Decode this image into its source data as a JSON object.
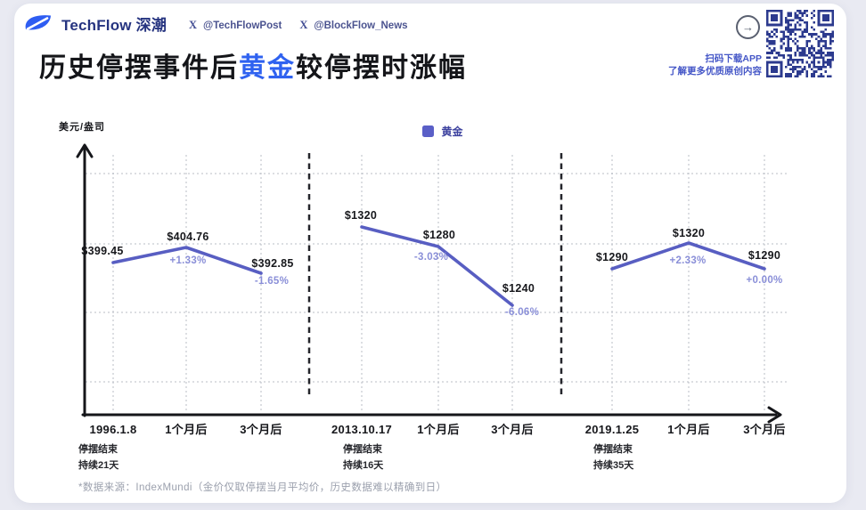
{
  "header": {
    "brand": "TechFlow 深潮",
    "handles": [
      {
        "icon": "X",
        "label": "@TechFlowPost"
      },
      {
        "icon": "X",
        "label": "@BlockFlow_News"
      }
    ],
    "download": {
      "arrow_icon": "→",
      "line1": "扫码下载APP",
      "line2": "了解更多优质原创内容"
    }
  },
  "title": {
    "pre": "历史停摆事件后",
    "highlight": "黄金",
    "post": "较停摆时涨幅"
  },
  "footnote": "*数据来源：IndexMundi（金价仅取停摆当月平均价，历史数据难以精确到日）",
  "colors": {
    "accent_blue": "#2f62f0",
    "brand_navy": "#263480",
    "line_purple": "#585ec2",
    "pct_purple": "#8a8fd8",
    "legend_purple": "#5a5fc7",
    "qr_blue": "#2c3a8e"
  },
  "chart_data": {
    "type": "line",
    "title": "历史停摆事件后黄金较停摆时涨幅",
    "ylabel": "美元/盎司",
    "xlabel": "",
    "grid": true,
    "legend_position": "top-center",
    "legend": [
      {
        "label": "黄金",
        "color": "#5a5fc7"
      }
    ],
    "groups": [
      {
        "event_date": "1996.1.8",
        "event_notes": [
          "停摆结束",
          "持续21天"
        ],
        "categories": [
          "1996.1.8",
          "1个月后",
          "3个月后"
        ],
        "values": [
          399.45,
          404.76,
          392.85
        ],
        "value_labels": [
          "$399.45",
          "$404.76",
          "$392.85"
        ],
        "pct_labels": [
          "",
          "+1.33%",
          "-1.65%"
        ]
      },
      {
        "event_date": "2013.10.17",
        "event_notes": [
          "停摆结束",
          "持续16天"
        ],
        "categories": [
          "2013.10.17",
          "1个月后",
          "3个月后"
        ],
        "values": [
          1320,
          1280,
          1240
        ],
        "value_labels": [
          "$1320",
          "$1280",
          "$1240"
        ],
        "pct_labels": [
          "",
          "-3.03%",
          "-6.06%"
        ]
      },
      {
        "event_date": "2019.1.25",
        "event_notes": [
          "停摆结束",
          "持续35天"
        ],
        "categories": [
          "2019.1.25",
          "1个月后",
          "3个月后"
        ],
        "values": [
          1290,
          1320,
          1290
        ],
        "value_labels": [
          "$1290",
          "$1320",
          "$1290"
        ],
        "pct_labels": [
          "",
          "+2.33%",
          "+0.00%"
        ]
      }
    ]
  }
}
